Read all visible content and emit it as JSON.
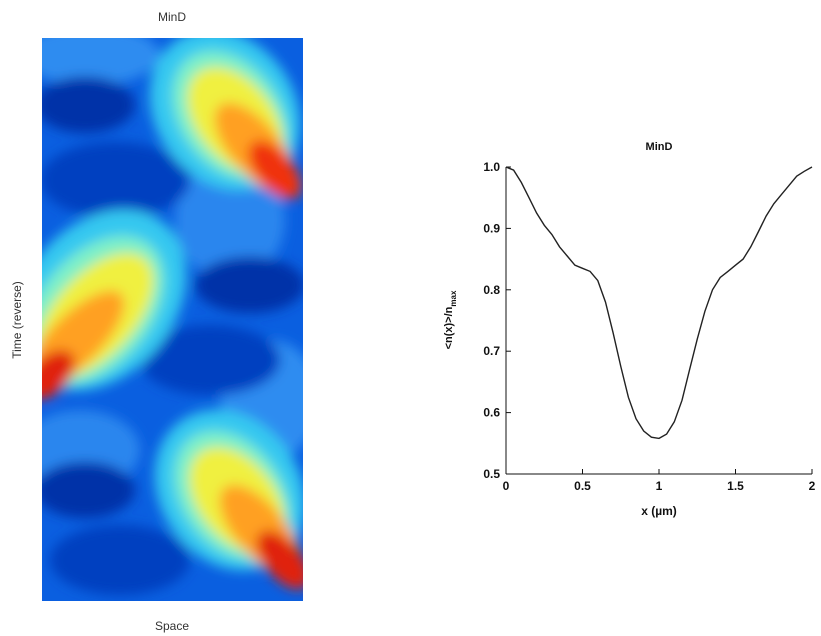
{
  "chart_data": [
    {
      "type": "heatmap",
      "title": "MinD",
      "xlabel": "Space",
      "ylabel": "Time (reverse)",
      "colormap": "jet",
      "colorbar": false,
      "x_ticks": false,
      "y_ticks": false
    },
    {
      "type": "line",
      "title": "MinD",
      "xlabel": "x (µm)",
      "ylabel": "<n(x)>/n",
      "ylabel_subscript": "max",
      "xlim": [
        0,
        2
      ],
      "ylim": [
        0.5,
        1.0
      ],
      "x_ticks": [
        0,
        0.5,
        1,
        1.5,
        2
      ],
      "x_tick_labels": [
        "0",
        "0.5",
        "1",
        "1.5",
        "2"
      ],
      "y_ticks": [
        0.5,
        0.6,
        0.7,
        0.8,
        0.9,
        1.0
      ],
      "y_tick_labels": [
        "0.5",
        "0.6",
        "0.7",
        "0.8",
        "0.9",
        "1.0"
      ],
      "grid": false,
      "line_color": "#222222",
      "x": [
        0,
        0.05,
        0.1,
        0.15,
        0.2,
        0.25,
        0.3,
        0.35,
        0.4,
        0.45,
        0.5,
        0.55,
        0.6,
        0.65,
        0.7,
        0.75,
        0.8,
        0.85,
        0.9,
        0.95,
        1.0,
        1.05,
        1.1,
        1.15,
        1.2,
        1.25,
        1.3,
        1.35,
        1.4,
        1.45,
        1.5,
        1.55,
        1.6,
        1.65,
        1.7,
        1.75,
        1.8,
        1.85,
        1.9,
        1.95,
        2.0
      ],
      "y": [
        1.0,
        0.995,
        0.975,
        0.95,
        0.925,
        0.905,
        0.89,
        0.87,
        0.855,
        0.84,
        0.835,
        0.83,
        0.815,
        0.78,
        0.73,
        0.675,
        0.625,
        0.59,
        0.57,
        0.56,
        0.558,
        0.565,
        0.585,
        0.62,
        0.67,
        0.72,
        0.765,
        0.8,
        0.82,
        0.83,
        0.84,
        0.85,
        0.87,
        0.895,
        0.92,
        0.94,
        0.955,
        0.97,
        0.985,
        0.993,
        1.0
      ]
    }
  ]
}
